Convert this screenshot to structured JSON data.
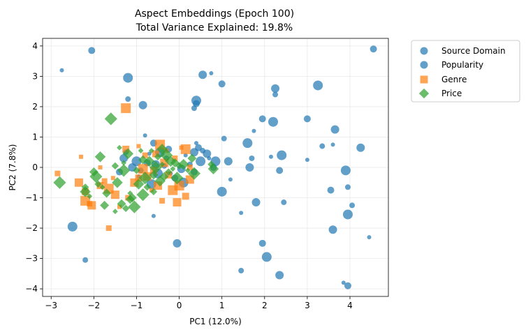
{
  "chart_data": {
    "type": "scatter",
    "title": "Aspect Embeddings (Epoch 100)",
    "subtitle": "Total Variance Explained: 19.8%",
    "xlabel": "PC1 (12.0%)",
    "ylabel": "PC2 (7.8%)",
    "xlim": [
      -3.2,
      4.9
    ],
    "ylim": [
      -4.25,
      4.25
    ],
    "xticks": [
      -3,
      -2,
      -1,
      0,
      1,
      2,
      3,
      4
    ],
    "yticks": [
      -4,
      -3,
      -2,
      -1,
      0,
      1,
      2,
      3,
      4
    ],
    "grid": true,
    "legend_position": "outside-top-right",
    "series": [
      {
        "name": "Source Domain",
        "marker": "circle",
        "color": "#1f77b4",
        "points": [
          [
            -2.75,
            3.2
          ],
          [
            -2.05,
            3.85
          ],
          [
            -1.2,
            2.95
          ],
          [
            -1.2,
            2.25
          ],
          [
            -0.85,
            2.05
          ],
          [
            -0.8,
            1.05
          ],
          [
            -0.6,
            0.8
          ],
          [
            -0.45,
            0.5
          ],
          [
            -0.3,
            0.3
          ],
          [
            -0.55,
            0.1
          ],
          [
            -0.2,
            -0.2
          ],
          [
            -0.1,
            -0.35
          ],
          [
            0.1,
            -0.5
          ],
          [
            0.25,
            0.1
          ],
          [
            0.35,
            0.5
          ],
          [
            0.4,
            0.8
          ],
          [
            0.45,
            0.65
          ],
          [
            0.5,
            0.2
          ],
          [
            0.55,
            0.55
          ],
          [
            0.65,
            0.45
          ],
          [
            0.7,
            0.3
          ],
          [
            0.8,
            0.0
          ],
          [
            0.85,
            0.2
          ],
          [
            1.05,
            0.95
          ],
          [
            1.15,
            0.2
          ],
          [
            1.2,
            -0.4
          ],
          [
            0.4,
            2.1
          ],
          [
            0.4,
            2.2
          ],
          [
            0.35,
            1.95
          ],
          [
            0.55,
            3.05
          ],
          [
            0.75,
            3.1
          ],
          [
            1.0,
            2.75
          ],
          [
            1.6,
            0.8
          ],
          [
            1.7,
            0.3
          ],
          [
            1.65,
            0.0
          ],
          [
            1.75,
            1.2
          ],
          [
            1.95,
            1.6
          ],
          [
            2.2,
            1.5
          ],
          [
            2.25,
            2.4
          ],
          [
            2.25,
            2.6
          ],
          [
            2.15,
            0.35
          ],
          [
            2.35,
            -0.1
          ],
          [
            2.4,
            0.4
          ],
          [
            2.45,
            -1.15
          ],
          [
            1.8,
            -1.15
          ],
          [
            1.45,
            -1.5
          ],
          [
            1.95,
            -2.5
          ],
          [
            2.05,
            -2.95
          ],
          [
            1.45,
            -3.4
          ],
          [
            2.35,
            -3.55
          ],
          [
            3.0,
            0.25
          ],
          [
            3.0,
            1.6
          ],
          [
            3.25,
            2.7
          ],
          [
            3.35,
            0.7
          ],
          [
            3.65,
            1.25
          ],
          [
            3.6,
            0.75
          ],
          [
            3.55,
            -0.75
          ],
          [
            3.9,
            -0.1
          ],
          [
            3.95,
            -0.65
          ],
          [
            3.6,
            -2.05
          ],
          [
            3.85,
            -3.8
          ],
          [
            3.95,
            -3.9
          ],
          [
            3.95,
            -1.55
          ],
          [
            4.05,
            -1.25
          ],
          [
            4.25,
            0.65
          ],
          [
            4.45,
            -2.3
          ],
          [
            4.55,
            3.9
          ],
          [
            -2.5,
            -1.95
          ],
          [
            -2.2,
            -3.05
          ],
          [
            -0.05,
            -2.5
          ],
          [
            -0.6,
            -1.6
          ],
          [
            0.35,
            -0.15
          ],
          [
            -1.0,
            0.2
          ],
          [
            -0.9,
            -0.1
          ],
          [
            -1.3,
            0.3
          ],
          [
            -0.7,
            0.45
          ],
          [
            -0.25,
            0.6
          ],
          [
            1.0,
            -0.8
          ]
        ]
      },
      {
        "name": "Popularity",
        "marker": "circle",
        "color": "#1f77b4",
        "points": [
          [
            -1.1,
            0.0
          ],
          [
            -0.95,
            -0.3
          ],
          [
            -0.75,
            0.15
          ],
          [
            -0.5,
            -0.2
          ],
          [
            -0.35,
            0.05
          ],
          [
            0.05,
            -0.05
          ],
          [
            0.15,
            0.4
          ],
          [
            -1.4,
            -0.15
          ],
          [
            -0.65,
            -0.55
          ],
          [
            -1.25,
            0.5
          ]
        ]
      },
      {
        "name": "Genre",
        "marker": "square",
        "color": "#ff7f0e",
        "points": [
          [
            -2.85,
            -0.2
          ],
          [
            -2.35,
            -0.5
          ],
          [
            -2.3,
            0.35
          ],
          [
            -2.2,
            -0.8
          ],
          [
            -2.2,
            -1.1
          ],
          [
            -2.1,
            -1.2
          ],
          [
            -2.05,
            -1.25
          ],
          [
            -1.85,
            0.0
          ],
          [
            -1.85,
            -0.6
          ],
          [
            -1.65,
            -0.7
          ],
          [
            -1.65,
            -2.0
          ],
          [
            -1.5,
            -0.9
          ],
          [
            -1.4,
            -1.3
          ],
          [
            -1.25,
            0.6
          ],
          [
            -1.25,
            1.95
          ],
          [
            -1.2,
            -1.0
          ],
          [
            -1.05,
            -0.5
          ],
          [
            -0.95,
            0.7
          ],
          [
            -0.95,
            -0.35
          ],
          [
            -0.85,
            -0.05
          ],
          [
            -0.8,
            0.4
          ],
          [
            -0.75,
            -0.3
          ],
          [
            -0.65,
            -0.75
          ],
          [
            -0.55,
            0.45
          ],
          [
            -0.45,
            0.75
          ],
          [
            -0.4,
            -1.1
          ],
          [
            -0.35,
            0.15
          ],
          [
            -0.3,
            0.55
          ],
          [
            -0.25,
            -0.25
          ],
          [
            -0.15,
            -0.75
          ],
          [
            -0.1,
            0.3
          ],
          [
            -0.05,
            -1.15
          ],
          [
            0.05,
            0.65
          ],
          [
            0.15,
            -0.95
          ],
          [
            0.15,
            0.6
          ],
          [
            0.25,
            0.0
          ],
          [
            0.25,
            -0.4
          ],
          [
            -1.55,
            -0.35
          ],
          [
            -0.6,
            -0.1
          ],
          [
            0.0,
            -0.6
          ],
          [
            -1.75,
            -0.45
          ],
          [
            -0.5,
            -0.6
          ]
        ]
      },
      {
        "name": "Price",
        "marker": "diamond",
        "color": "#2ca02c",
        "points": [
          [
            -2.8,
            -0.5
          ],
          [
            -2.2,
            -0.65
          ],
          [
            -2.2,
            -0.8
          ],
          [
            -2.1,
            -0.95
          ],
          [
            -2.0,
            -0.15
          ],
          [
            -1.95,
            -0.3
          ],
          [
            -1.9,
            -0.55
          ],
          [
            -1.85,
            0.35
          ],
          [
            -1.8,
            -0.65
          ],
          [
            -1.75,
            -1.25
          ],
          [
            -1.6,
            1.6
          ],
          [
            -1.5,
            0.05
          ],
          [
            -1.45,
            -0.5
          ],
          [
            -1.4,
            0.65
          ],
          [
            -1.35,
            -1.2
          ],
          [
            -1.3,
            -0.1
          ],
          [
            -1.25,
            -1.35
          ],
          [
            -1.2,
            0.45
          ],
          [
            -1.15,
            -0.85
          ],
          [
            -1.1,
            -1.0
          ],
          [
            -1.05,
            -1.3
          ],
          [
            -1.0,
            -0.1
          ],
          [
            -0.95,
            -0.55
          ],
          [
            -0.9,
            0.55
          ],
          [
            -0.85,
            0.25
          ],
          [
            -0.8,
            -0.35
          ],
          [
            -0.75,
            -0.65
          ],
          [
            -0.7,
            0.2
          ],
          [
            -0.65,
            0.55
          ],
          [
            -0.6,
            -0.25
          ],
          [
            -0.55,
            0.0
          ],
          [
            -0.5,
            0.35
          ],
          [
            -0.45,
            -0.45
          ],
          [
            -0.4,
            0.1
          ],
          [
            -0.35,
            -0.3
          ],
          [
            -0.3,
            0.4
          ],
          [
            -0.25,
            -0.15
          ],
          [
            -0.2,
            0.2
          ],
          [
            -0.15,
            -0.05
          ],
          [
            -0.1,
            0.15
          ],
          [
            -0.05,
            -0.35
          ],
          [
            0.0,
            0.05
          ],
          [
            0.1,
            0.1
          ],
          [
            0.2,
            -0.1
          ],
          [
            0.3,
            0.3
          ],
          [
            0.35,
            -0.2
          ],
          [
            0.75,
            0.1
          ],
          [
            0.8,
            -0.05
          ],
          [
            -1.5,
            -1.45
          ],
          [
            -1.15,
            -1.05
          ],
          [
            -0.85,
            -0.9
          ],
          [
            -0.6,
            -0.8
          ],
          [
            -0.4,
            0.6
          ],
          [
            -1.3,
            0.15
          ],
          [
            -1.7,
            -0.85
          ]
        ]
      }
    ]
  }
}
